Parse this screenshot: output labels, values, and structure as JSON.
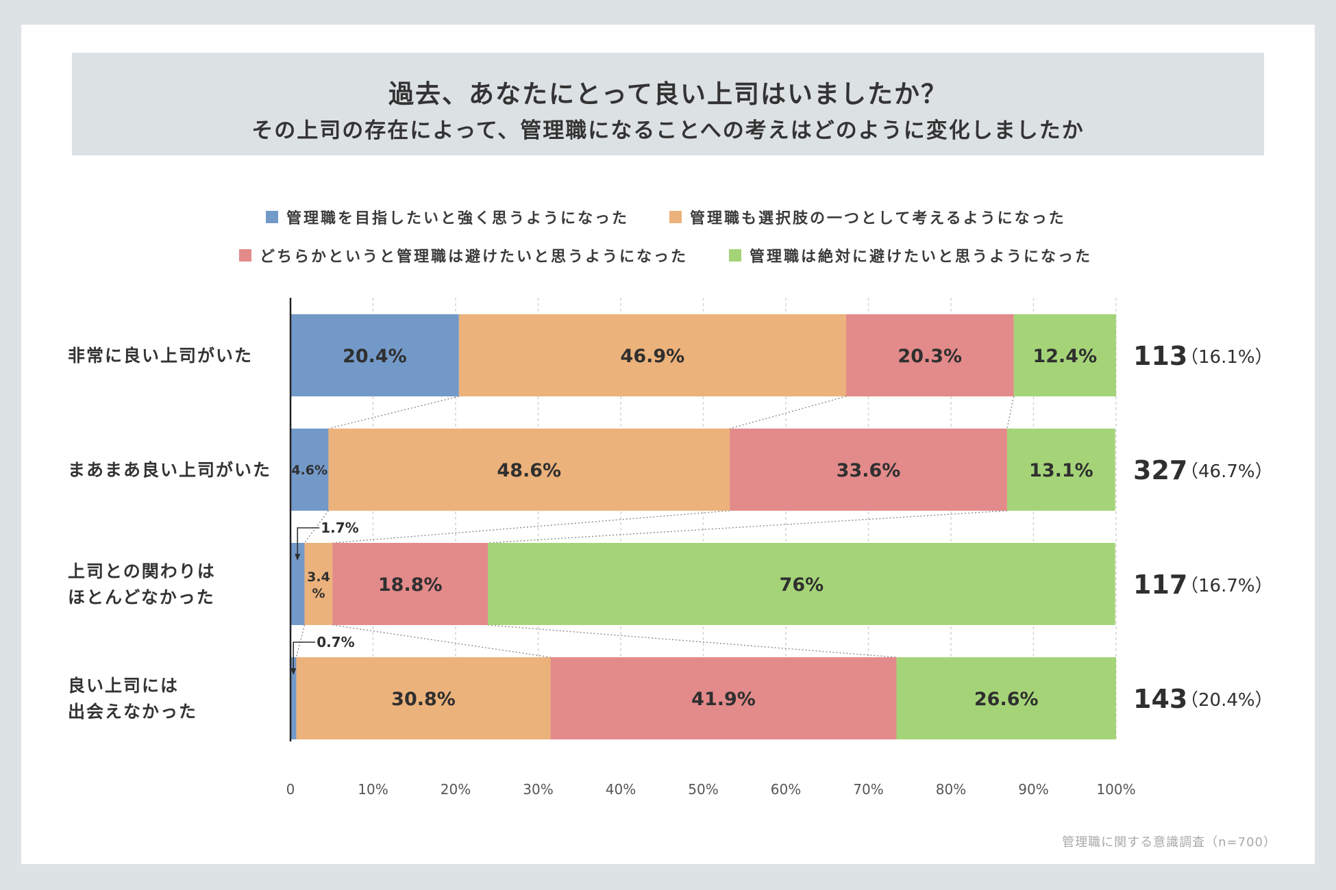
{
  "title": {
    "line1": "過去、あなたにとって良い上司はいましたか？",
    "line2": "その上司の存在によって、管理職になることへの考えはどのように変化しましたか"
  },
  "footnote": "管理職に関する意識調査（n=700）",
  "colors": {
    "series1": "#7399c8",
    "series2": "#ecb27b",
    "series3": "#e38a8a",
    "series4": "#a5d478"
  },
  "chart_data": {
    "type": "bar",
    "orientation": "horizontal",
    "stacked": true,
    "xlim": [
      0,
      100
    ],
    "grid": true,
    "legend_position": "top",
    "ticks": [
      "0",
      "10%",
      "20%",
      "30%",
      "40%",
      "50%",
      "60%",
      "70%",
      "80%",
      "90%",
      "100%"
    ],
    "series": [
      {
        "name": "管理職を目指したいと強く思うようになった",
        "values": [
          20.4,
          4.6,
          1.7,
          0.7
        ],
        "labels": [
          "20.4%",
          "4.6%",
          "1.7%",
          "0.7%"
        ]
      },
      {
        "name": "管理職も選択肢の一つとして考えるようになった",
        "values": [
          46.9,
          48.6,
          3.4,
          30.8
        ],
        "labels": [
          "46.9%",
          "48.6%",
          "3.4%",
          "30.8%"
        ]
      },
      {
        "name": "どちらかというと管理職は避けたいと思うようになった",
        "values": [
          20.3,
          33.6,
          18.8,
          41.9
        ],
        "labels": [
          "20.3%",
          "33.6%",
          "18.8%",
          "41.9%"
        ]
      },
      {
        "name": "管理職は絶対に避けたいと思うようになった",
        "values": [
          12.4,
          13.1,
          76,
          26.6
        ],
        "labels": [
          "12.4%",
          "13.1%",
          "76%",
          "26.6%"
        ]
      }
    ],
    "categories": [
      {
        "lines": [
          "非常に良い上司がいた"
        ],
        "n": "113",
        "pct": "（16.1%）"
      },
      {
        "lines": [
          "まあまあ良い上司がいた"
        ],
        "n": "327",
        "pct": "（46.7%）"
      },
      {
        "lines": [
          "上司との関わりは",
          "ほとんどなかった"
        ],
        "n": "117",
        "pct": "（16.7%）"
      },
      {
        "lines": [
          "良い上司には",
          "出会えなかった"
        ],
        "n": "143",
        "pct": "（20.4%）"
      }
    ]
  }
}
